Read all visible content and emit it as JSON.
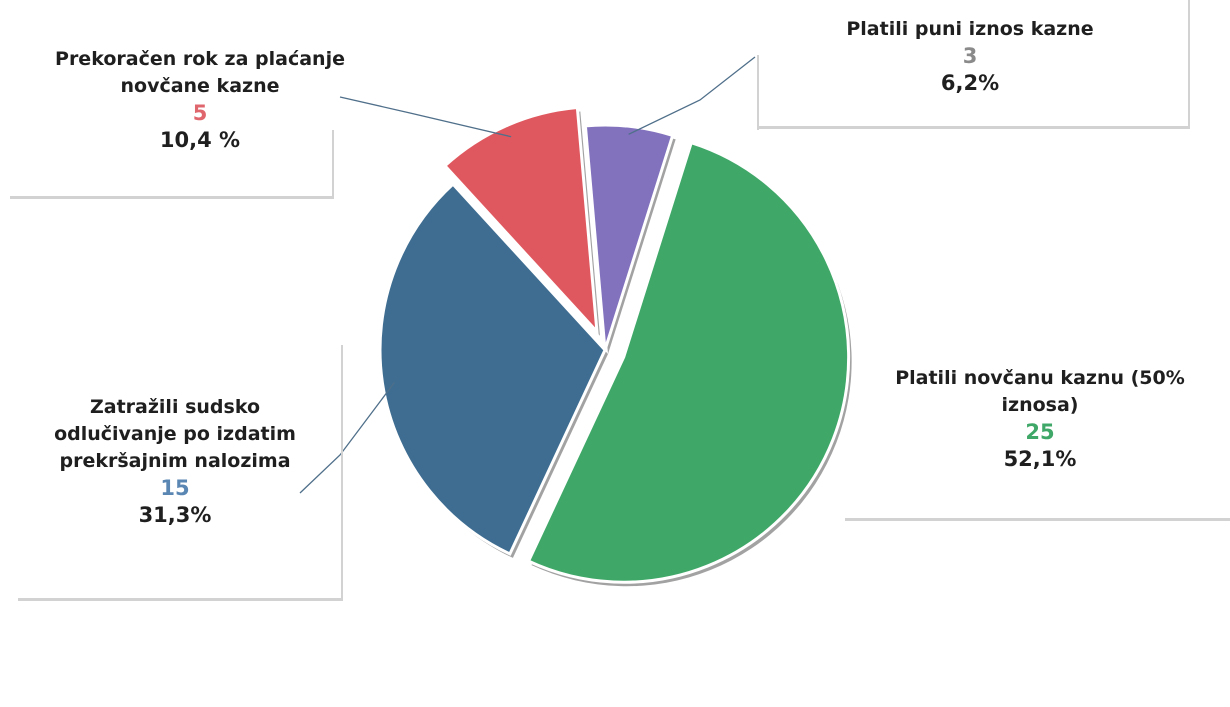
{
  "chart_data": {
    "type": "pie",
    "slices": [
      {
        "label": "Platili novčanu kaznu (50% iznosa)",
        "value": 25,
        "percent_label": "52,1%",
        "color": "#3fa868",
        "count_color": "#3fa868",
        "exploded": true
      },
      {
        "label": "Zatražili sudsko odlučivanje po izdatim prekršajnim nalozima",
        "value": 15,
        "percent_label": "31,3%",
        "color": "#3e6d91",
        "count_color": "#5a86b3",
        "exploded": false
      },
      {
        "label": "Prekoračen rok za plaćanje novčane kazne",
        "value": 5,
        "percent_label": "10,4 %",
        "color": "#e0585f",
        "count_color": "#e0666d",
        "exploded": true
      },
      {
        "label": "Platili puni iznos kazne",
        "value": 3,
        "percent_label": "6,2%",
        "color": "#8272bd",
        "count_color": "#8a8a8a",
        "exploded": false
      }
    ],
    "legend": "none"
  },
  "labels": {
    "green": {
      "line1": "Platili novčanu kaznu (50%",
      "line2": "iznosa)",
      "count": "25",
      "pct": "52,1%"
    },
    "blue": {
      "line1": "Zatražili sudsko",
      "line2": "odlučivanje po izdatim",
      "line3": "prekršajnim nalozima",
      "count": "15",
      "pct": "31,3%"
    },
    "red": {
      "line1": "Prekoračen rok za plaćanje",
      "line2": "novčane kazne",
      "count": "5",
      "pct": "10,4 %"
    },
    "purple": {
      "line1": "Platili puni iznos kazne",
      "count": "3",
      "pct": "6,2%"
    }
  }
}
